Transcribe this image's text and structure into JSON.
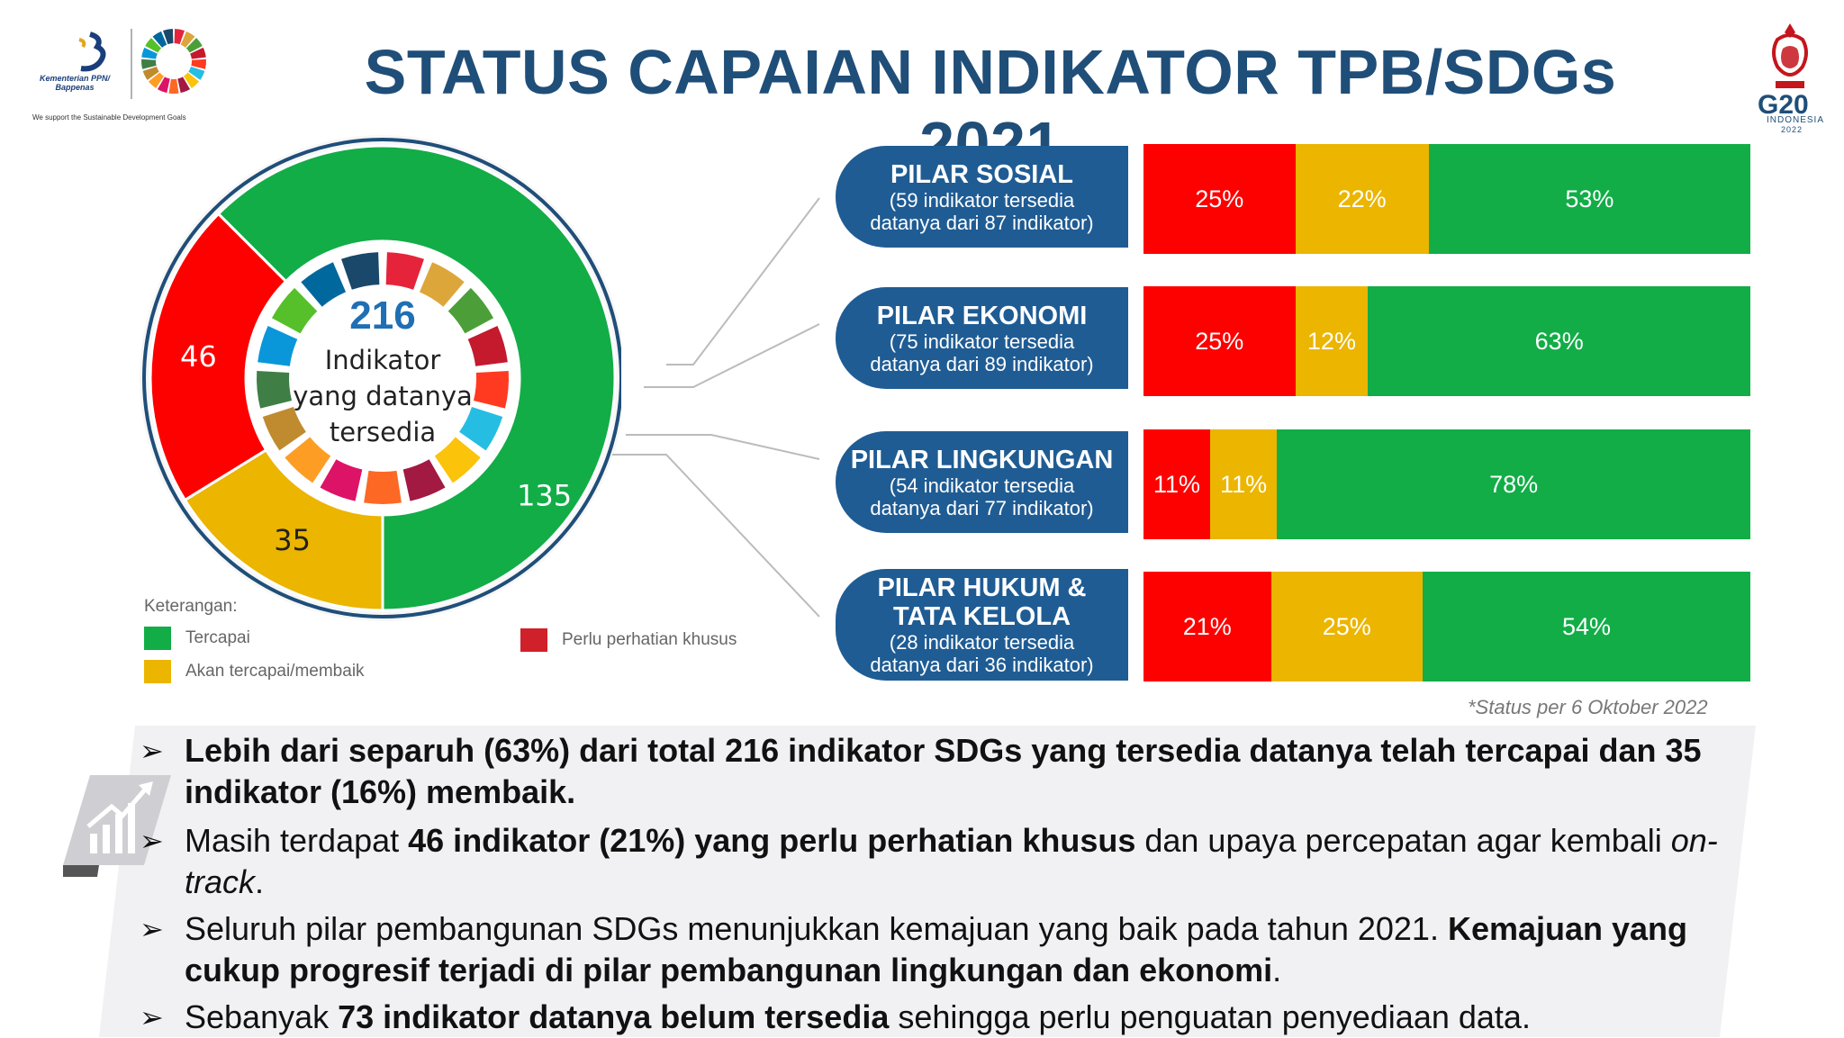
{
  "header": {
    "title": "STATUS CAPAIAN INDIKATOR TPB/SDGs 2021",
    "bappenas_name": "Kementerian PPN/ Bappenas",
    "bappenas_tagline": "We support the Sustainable Development Goals",
    "g20_text": "G20",
    "g20_sub": "INDONESIA",
    "g20_year": "2022"
  },
  "donut": {
    "center_number": "216",
    "center_line1": "Indikator",
    "center_line2": "yang datanya",
    "center_line3": "tersedia"
  },
  "legend": {
    "title": "Keterangan:",
    "items": [
      "Tercapai",
      "Akan tercapai/membaik",
      "Perlu perhatian khusus"
    ]
  },
  "colors": {
    "green": "#12ad47",
    "yellow": "#ebb500",
    "red": "#fd0000",
    "navy": "#1f5c94",
    "title": "#1f4e79"
  },
  "pillars": [
    {
      "name": "PILAR SOSIAL",
      "desc1": "(59 indikator tersedia",
      "desc2": "datanya dari 87 indikator)"
    },
    {
      "name": "PILAR EKONOMI",
      "desc1": "(75 indikator tersedia",
      "desc2": "datanya dari 89 indikator)"
    },
    {
      "name": "PILAR LINGKUNGAN",
      "desc1": "(54  indikator tersedia",
      "desc2": "datanya dari 77 indikator)"
    },
    {
      "name": "PILAR HUKUM &",
      "name2": "TATA KELOLA",
      "desc1": "(28 indikator tersedia",
      "desc2": "datanya dari 36 indikator)"
    }
  ],
  "status_note": "*Status per 6 Oktober 2022",
  "chart_data": [
    {
      "type": "pie",
      "title": "",
      "categories": [
        "Tercapai",
        "Akan tercapai/membaik",
        "Perlu perhatian khusus"
      ],
      "values": [
        135,
        35,
        46
      ],
      "labels": [
        "135",
        "35",
        "46"
      ],
      "total": 216
    },
    {
      "type": "bar",
      "stacked": true,
      "orientation": "horizontal",
      "categories": [
        "PILAR SOSIAL",
        "PILAR EKONOMI",
        "PILAR LINGKUNGAN",
        "PILAR HUKUM & TATA KELOLA"
      ],
      "series": [
        {
          "name": "Perlu perhatian khusus",
          "values": [
            25,
            25,
            11,
            21
          ],
          "labels": [
            "25%",
            "25%",
            "11%",
            "21%"
          ]
        },
        {
          "name": "Akan tercapai/membaik",
          "values": [
            22,
            12,
            11,
            25
          ],
          "labels": [
            "22%",
            "12%",
            "11%",
            "25%"
          ]
        },
        {
          "name": "Tercapai",
          "values": [
            53,
            63,
            78,
            54
          ],
          "labels": [
            "53%",
            "63%",
            "78%",
            "54%"
          ]
        }
      ]
    }
  ],
  "bullets": [
    {
      "parts": [
        {
          "t": "Lebih dari separuh (63%) dari total 216 indikator SDGs yang tersedia datanya telah tercapai dan 35 indikator (16%) membaik.",
          "s": "b"
        }
      ]
    },
    {
      "parts": [
        {
          "t": "Masih terdapat ",
          "s": ""
        },
        {
          "t": "46 indikator (21%) yang perlu perhatian khusus",
          "s": "b"
        },
        {
          "t": " dan upaya percepatan agar kembali ",
          "s": ""
        },
        {
          "t": "on-track",
          "s": "i"
        },
        {
          "t": ".",
          "s": ""
        }
      ]
    },
    {
      "parts": [
        {
          "t": "Seluruh pilar pembangunan SDGs menunjukkan kemajuan yang baik pada tahun 2021. ",
          "s": ""
        },
        {
          "t": "Kemajuan yang cukup progresif terjadi di pilar pembangunan lingkungan dan ekonomi",
          "s": "b"
        },
        {
          "t": ".",
          "s": ""
        }
      ]
    },
    {
      "parts": [
        {
          "t": "Sebanyak ",
          "s": ""
        },
        {
          "t": "73 indikator datanya belum tersedia",
          "s": "b"
        },
        {
          "t": " sehingga perlu penguatan penyediaan data.",
          "s": ""
        }
      ]
    }
  ]
}
